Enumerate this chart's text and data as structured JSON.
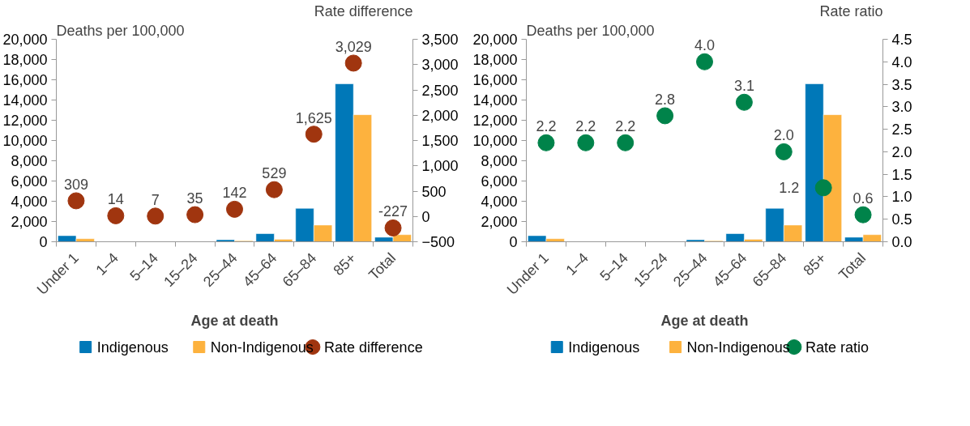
{
  "chart_data": [
    {
      "type": "bar",
      "ylabel": "Deaths per 100,000",
      "y2label": "Rate difference",
      "xlabel": "Age at death",
      "categories": [
        "Under 1",
        "1–4",
        "5–14",
        "15–24",
        "25–44",
        "45–64",
        "65–84",
        "85+",
        "Total"
      ],
      "series": [
        {
          "name": "Indigenous",
          "color": "#0078b8",
          "values": [
            600,
            30,
            10,
            50,
            200,
            800,
            3300,
            15600,
            450
          ]
        },
        {
          "name": "Non-Indigenous",
          "color": "#fdb23e",
          "values": [
            300,
            10,
            10,
            30,
            100,
            250,
            1650,
            12550,
            700
          ]
        },
        {
          "name": "Rate difference",
          "type": "scatter",
          "axis": "y2",
          "marker": "circle",
          "color": "#a0350f",
          "values": [
            309,
            14,
            7,
            35,
            142,
            529,
            1625,
            3029,
            -227
          ],
          "value_labels": [
            "309",
            "14",
            "7",
            "35",
            "142",
            "529",
            "1,625",
            "3,029",
            "-227"
          ]
        }
      ],
      "ylim": [
        0,
        20000
      ],
      "yticks": [
        0,
        {
          "value": 2000,
          "label": "2,000"
        },
        {
          "value": 4000,
          "label": "4,000"
        },
        {
          "value": 6000,
          "label": "6,000"
        },
        {
          "value": 8000,
          "label": "8,000"
        },
        {
          "value": 10000,
          "label": "10,000"
        },
        {
          "value": 12000,
          "label": "12,000"
        },
        {
          "value": 14000,
          "label": "14,000"
        },
        {
          "value": 16000,
          "label": "16,000"
        },
        {
          "value": 18000,
          "label": "18,000"
        },
        {
          "value": 20000,
          "label": "20,000"
        }
      ],
      "y2lim": [
        -500,
        3500
      ],
      "y2ticks": [
        -500,
        0,
        500,
        {
          "value": 1000,
          "label": "1,000"
        },
        {
          "value": 1500,
          "label": "1,500"
        },
        {
          "value": 2000,
          "label": "2,000"
        },
        {
          "value": 2500,
          "label": "2,500"
        },
        {
          "value": 3000,
          "label": "3,000"
        },
        {
          "value": 3500,
          "label": "3,500"
        }
      ],
      "legend": "bottom",
      "grid": false
    },
    {
      "type": "bar",
      "ylabel": "Deaths per 100,000",
      "y2label": "Rate ratio",
      "xlabel": "Age at death",
      "categories": [
        "Under 1",
        "1–4",
        "5–14",
        "15–24",
        "25–44",
        "45–64",
        "65–84",
        "85+",
        "Total"
      ],
      "series": [
        {
          "name": "Indigenous",
          "color": "#0078b8",
          "values": [
            600,
            30,
            10,
            50,
            200,
            800,
            3300,
            15600,
            450
          ]
        },
        {
          "name": "Non-Indigenous",
          "color": "#fdb23e",
          "values": [
            300,
            10,
            10,
            30,
            100,
            250,
            1650,
            12550,
            700
          ]
        },
        {
          "name": "Rate ratio",
          "type": "scatter",
          "axis": "y2",
          "marker": "circle",
          "color": "#00834a",
          "values": [
            2.2,
            2.2,
            2.2,
            2.8,
            4.0,
            3.1,
            2.0,
            1.2,
            0.6
          ],
          "value_labels": [
            "2.2",
            "2.2",
            "2.2",
            "2.8",
            "4.0",
            "3.1",
            "2.0",
            "1.2",
            "0.6"
          ]
        }
      ],
      "ylim": [
        0,
        20000
      ],
      "yticks": [
        0,
        {
          "value": 2000,
          "label": "2,000"
        },
        {
          "value": 4000,
          "label": "4,000"
        },
        {
          "value": 6000,
          "label": "6,000"
        },
        {
          "value": 8000,
          "label": "8,000"
        },
        {
          "value": 10000,
          "label": "10,000"
        },
        {
          "value": 12000,
          "label": "12,000"
        },
        {
          "value": 14000,
          "label": "14,000"
        },
        {
          "value": 16000,
          "label": "16,000"
        },
        {
          "value": 18000,
          "label": "18,000"
        },
        {
          "value": 20000,
          "label": "20,000"
        }
      ],
      "y2lim": [
        0,
        4.5
      ],
      "y2ticks": [
        {
          "value": 0,
          "label": "0.0"
        },
        0.5,
        {
          "value": 1,
          "label": "1.0"
        },
        1.5,
        {
          "value": 2,
          "label": "2.0"
        },
        2.5,
        {
          "value": 3,
          "label": "3.0"
        },
        3.5,
        {
          "value": 4,
          "label": "4.0"
        },
        4.5
      ],
      "legend": "bottom",
      "grid": false
    }
  ]
}
